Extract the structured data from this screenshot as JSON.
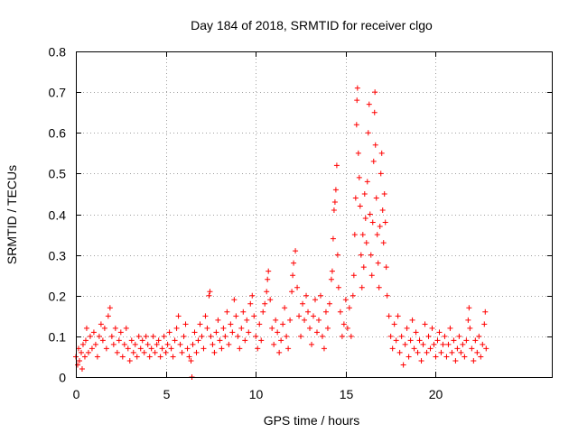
{
  "chart_data": {
    "type": "scatter",
    "title": "Day 184 of 2018, SRMTID for receiver clgo",
    "xlabel": "GPS time / hours",
    "ylabel": "SRMTID / TECUs",
    "xlim": [
      0,
      26.5
    ],
    "ylim": [
      0,
      0.8
    ],
    "x_ticks": [
      0,
      5,
      10,
      15,
      20
    ],
    "y_ticks": [
      0,
      0.1,
      0.2,
      0.3,
      0.4,
      0.5,
      0.6,
      0.7,
      0.8
    ],
    "x_tick_labels": [
      "0",
      "5",
      "10",
      "15",
      "20"
    ],
    "y_tick_labels": [
      "0",
      "0.1",
      "0.2",
      "0.3",
      "0.4",
      "0.5",
      "0.6",
      "0.7",
      "0.8"
    ],
    "grid": true,
    "marker": "plus",
    "series": [
      {
        "name": "SRMTID",
        "color": "#ff0000",
        "points": [
          [
            0.0,
            0.05
          ],
          [
            0.1,
            0.03
          ],
          [
            0.15,
            0.07
          ],
          [
            0.2,
            0.04
          ],
          [
            0.3,
            0.06
          ],
          [
            0.35,
            0.02
          ],
          [
            0.4,
            0.08
          ],
          [
            0.5,
            0.05
          ],
          [
            0.55,
            0.09
          ],
          [
            0.6,
            0.12
          ],
          [
            0.7,
            0.06
          ],
          [
            0.8,
            0.1
          ],
          [
            0.9,
            0.07
          ],
          [
            1.0,
            0.11
          ],
          [
            1.1,
            0.08
          ],
          [
            1.2,
            0.05
          ],
          [
            1.3,
            0.1
          ],
          [
            1.4,
            0.13
          ],
          [
            1.5,
            0.09
          ],
          [
            1.6,
            0.12
          ],
          [
            1.7,
            0.07
          ],
          [
            1.8,
            0.15
          ],
          [
            1.9,
            0.17
          ],
          [
            2.0,
            0.1
          ],
          [
            2.1,
            0.08
          ],
          [
            2.2,
            0.12
          ],
          [
            2.3,
            0.06
          ],
          [
            2.4,
            0.09
          ],
          [
            2.5,
            0.11
          ],
          [
            2.6,
            0.05
          ],
          [
            2.7,
            0.08
          ],
          [
            2.8,
            0.12
          ],
          [
            2.9,
            0.07
          ],
          [
            3.0,
            0.04
          ],
          [
            3.1,
            0.09
          ],
          [
            3.2,
            0.06
          ],
          [
            3.3,
            0.08
          ],
          [
            3.4,
            0.05
          ],
          [
            3.5,
            0.1
          ],
          [
            3.6,
            0.07
          ],
          [
            3.7,
            0.09
          ],
          [
            3.8,
            0.06
          ],
          [
            3.9,
            0.1
          ],
          [
            4.0,
            0.08
          ],
          [
            4.1,
            0.05
          ],
          [
            4.2,
            0.07
          ],
          [
            4.3,
            0.1
          ],
          [
            4.4,
            0.06
          ],
          [
            4.5,
            0.08
          ],
          [
            4.6,
            0.09
          ],
          [
            4.7,
            0.05
          ],
          [
            4.8,
            0.07
          ],
          [
            4.9,
            0.1
          ],
          [
            5.0,
            0.06
          ],
          [
            5.1,
            0.08
          ],
          [
            5.2,
            0.11
          ],
          [
            5.3,
            0.07
          ],
          [
            5.4,
            0.05
          ],
          [
            5.5,
            0.09
          ],
          [
            5.6,
            0.12
          ],
          [
            5.7,
            0.15
          ],
          [
            5.8,
            0.08
          ],
          [
            5.9,
            0.06
          ],
          [
            6.0,
            0.1
          ],
          [
            6.1,
            0.13
          ],
          [
            6.2,
            0.07
          ],
          [
            6.3,
            0.05
          ],
          [
            6.4,
            0.04
          ],
          [
            6.45,
            0.0
          ],
          [
            6.5,
            0.08
          ],
          [
            6.6,
            0.11
          ],
          [
            6.7,
            0.06
          ],
          [
            6.8,
            0.09
          ],
          [
            6.9,
            0.13
          ],
          [
            7.0,
            0.1
          ],
          [
            7.1,
            0.07
          ],
          [
            7.2,
            0.15
          ],
          [
            7.3,
            0.12
          ],
          [
            7.4,
            0.2
          ],
          [
            7.45,
            0.21
          ],
          [
            7.5,
            0.1
          ],
          [
            7.6,
            0.08
          ],
          [
            7.7,
            0.06
          ],
          [
            7.8,
            0.11
          ],
          [
            7.9,
            0.14
          ],
          [
            8.0,
            0.09
          ],
          [
            8.1,
            0.07
          ],
          [
            8.2,
            0.12
          ],
          [
            8.3,
            0.1
          ],
          [
            8.4,
            0.16
          ],
          [
            8.5,
            0.08
          ],
          [
            8.6,
            0.13
          ],
          [
            8.7,
            0.11
          ],
          [
            8.8,
            0.19
          ],
          [
            8.9,
            0.15
          ],
          [
            9.0,
            0.1
          ],
          [
            9.1,
            0.07
          ],
          [
            9.2,
            0.12
          ],
          [
            9.3,
            0.16
          ],
          [
            9.4,
            0.09
          ],
          [
            9.5,
            0.14
          ],
          [
            9.6,
            0.11
          ],
          [
            9.7,
            0.18
          ],
          [
            9.8,
            0.2
          ],
          [
            9.9,
            0.15
          ],
          [
            10.0,
            0.1
          ],
          [
            10.1,
            0.07
          ],
          [
            10.2,
            0.13
          ],
          [
            10.3,
            0.09
          ],
          [
            10.4,
            0.16
          ],
          [
            10.5,
            0.18
          ],
          [
            10.6,
            0.21
          ],
          [
            10.65,
            0.24
          ],
          [
            10.7,
            0.26
          ],
          [
            10.8,
            0.19
          ],
          [
            10.9,
            0.12
          ],
          [
            11.0,
            0.08
          ],
          [
            11.1,
            0.14
          ],
          [
            11.2,
            0.11
          ],
          [
            11.3,
            0.06
          ],
          [
            11.4,
            0.09
          ],
          [
            11.5,
            0.13
          ],
          [
            11.6,
            0.17
          ],
          [
            11.7,
            0.1
          ],
          [
            11.8,
            0.07
          ],
          [
            11.9,
            0.14
          ],
          [
            12.0,
            0.21
          ],
          [
            12.05,
            0.25
          ],
          [
            12.1,
            0.28
          ],
          [
            12.2,
            0.31
          ],
          [
            12.3,
            0.22
          ],
          [
            12.4,
            0.15
          ],
          [
            12.5,
            0.1
          ],
          [
            12.6,
            0.18
          ],
          [
            12.7,
            0.14
          ],
          [
            12.8,
            0.2
          ],
          [
            12.9,
            0.16
          ],
          [
            13.0,
            0.12
          ],
          [
            13.1,
            0.08
          ],
          [
            13.2,
            0.15
          ],
          [
            13.3,
            0.19
          ],
          [
            13.4,
            0.11
          ],
          [
            13.5,
            0.14
          ],
          [
            13.6,
            0.2
          ],
          [
            13.7,
            0.1
          ],
          [
            13.8,
            0.07
          ],
          [
            13.9,
            0.16
          ],
          [
            14.0,
            0.12
          ],
          [
            14.1,
            0.18
          ],
          [
            14.2,
            0.24
          ],
          [
            14.25,
            0.26
          ],
          [
            14.3,
            0.34
          ],
          [
            14.35,
            0.41
          ],
          [
            14.4,
            0.43
          ],
          [
            14.45,
            0.46
          ],
          [
            14.5,
            0.52
          ],
          [
            14.55,
            0.3
          ],
          [
            14.6,
            0.22
          ],
          [
            14.7,
            0.16
          ],
          [
            14.8,
            0.1
          ],
          [
            14.9,
            0.13
          ],
          [
            15.0,
            0.19
          ],
          [
            15.1,
            0.12
          ],
          [
            15.2,
            0.17
          ],
          [
            15.3,
            0.1
          ],
          [
            15.4,
            0.2
          ],
          [
            15.45,
            0.25
          ],
          [
            15.5,
            0.35
          ],
          [
            15.55,
            0.44
          ],
          [
            15.6,
            0.62
          ],
          [
            15.62,
            0.68
          ],
          [
            15.65,
            0.71
          ],
          [
            15.7,
            0.55
          ],
          [
            15.75,
            0.49
          ],
          [
            15.8,
            0.42
          ],
          [
            15.85,
            0.3
          ],
          [
            15.9,
            0.22
          ],
          [
            15.95,
            0.35
          ],
          [
            16.0,
            0.27
          ],
          [
            16.05,
            0.45
          ],
          [
            16.1,
            0.39
          ],
          [
            16.15,
            0.33
          ],
          [
            16.2,
            0.48
          ],
          [
            16.25,
            0.6
          ],
          [
            16.3,
            0.67
          ],
          [
            16.35,
            0.4
          ],
          [
            16.4,
            0.3
          ],
          [
            16.45,
            0.25
          ],
          [
            16.5,
            0.38
          ],
          [
            16.55,
            0.53
          ],
          [
            16.6,
            0.65
          ],
          [
            16.62,
            0.7
          ],
          [
            16.65,
            0.57
          ],
          [
            16.7,
            0.44
          ],
          [
            16.75,
            0.35
          ],
          [
            16.8,
            0.28
          ],
          [
            16.85,
            0.22
          ],
          [
            16.9,
            0.37
          ],
          [
            16.95,
            0.5
          ],
          [
            17.0,
            0.55
          ],
          [
            17.05,
            0.41
          ],
          [
            17.1,
            0.33
          ],
          [
            17.15,
            0.45
          ],
          [
            17.2,
            0.38
          ],
          [
            17.25,
            0.27
          ],
          [
            17.3,
            0.2
          ],
          [
            17.4,
            0.15
          ],
          [
            17.5,
            0.1
          ],
          [
            17.6,
            0.07
          ],
          [
            17.7,
            0.13
          ],
          [
            17.8,
            0.09
          ],
          [
            17.9,
            0.15
          ],
          [
            18.0,
            0.06
          ],
          [
            18.1,
            0.1
          ],
          [
            18.2,
            0.03
          ],
          [
            18.3,
            0.08
          ],
          [
            18.4,
            0.12
          ],
          [
            18.5,
            0.05
          ],
          [
            18.6,
            0.09
          ],
          [
            18.7,
            0.14
          ],
          [
            18.8,
            0.07
          ],
          [
            18.9,
            0.11
          ],
          [
            19.0,
            0.06
          ],
          [
            19.1,
            0.09
          ],
          [
            19.2,
            0.04
          ],
          [
            19.3,
            0.08
          ],
          [
            19.4,
            0.13
          ],
          [
            19.5,
            0.06
          ],
          [
            19.6,
            0.1
          ],
          [
            19.7,
            0.07
          ],
          [
            19.8,
            0.12
          ],
          [
            19.9,
            0.08
          ],
          [
            20.0,
            0.05
          ],
          [
            20.1,
            0.09
          ],
          [
            20.2,
            0.11
          ],
          [
            20.3,
            0.06
          ],
          [
            20.4,
            0.08
          ],
          [
            20.5,
            0.1
          ],
          [
            20.6,
            0.05
          ],
          [
            20.7,
            0.08
          ],
          [
            20.8,
            0.12
          ],
          [
            20.9,
            0.06
          ],
          [
            21.0,
            0.09
          ],
          [
            21.1,
            0.04
          ],
          [
            21.2,
            0.07
          ],
          [
            21.3,
            0.1
          ],
          [
            21.4,
            0.06
          ],
          [
            21.5,
            0.08
          ],
          [
            21.6,
            0.05
          ],
          [
            21.7,
            0.09
          ],
          [
            21.8,
            0.14
          ],
          [
            21.85,
            0.17
          ],
          [
            21.9,
            0.12
          ],
          [
            22.0,
            0.07
          ],
          [
            22.1,
            0.04
          ],
          [
            22.2,
            0.09
          ],
          [
            22.3,
            0.06
          ],
          [
            22.4,
            0.1
          ],
          [
            22.5,
            0.05
          ],
          [
            22.6,
            0.08
          ],
          [
            22.7,
            0.13
          ],
          [
            22.75,
            0.16
          ],
          [
            22.8,
            0.07
          ]
        ]
      }
    ]
  }
}
